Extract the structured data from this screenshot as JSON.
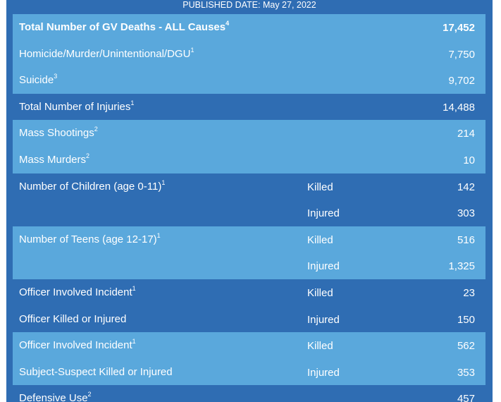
{
  "published_date": "PUBLISHED DATE: May 27, 2022",
  "rows": [
    {
      "label": "Total Number of GV Deaths - ALL Causes",
      "sup": "4",
      "kind": "",
      "value": "17,452",
      "bold": true,
      "shade": "light"
    },
    {
      "label": "Homicide/Murder/Unintentional/DGU",
      "sup": "1",
      "kind": "",
      "value": "7,750",
      "bold": false,
      "shade": "light"
    },
    {
      "label": "Suicide",
      "sup": "3",
      "kind": "",
      "value": "9,702",
      "bold": false,
      "shade": "light"
    },
    {
      "label": "Total Number of Injuries",
      "sup": "1",
      "kind": "",
      "value": "14,488",
      "bold": false,
      "shade": "dark"
    },
    {
      "label": "Mass Shootings",
      "sup": "2",
      "kind": "",
      "value": "214",
      "bold": false,
      "shade": "light"
    },
    {
      "label": "Mass Murders",
      "sup": "2",
      "kind": "",
      "value": "10",
      "bold": false,
      "shade": "light"
    },
    {
      "label": "Number of Children (age 0-11)",
      "sup": "1",
      "kind": "Killed",
      "value": "142",
      "bold": false,
      "shade": "dark"
    },
    {
      "label": "",
      "sup": "",
      "kind": "Injured",
      "value": "303",
      "bold": false,
      "shade": "dark"
    },
    {
      "label": "Number of Teens (age 12-17)",
      "sup": "1",
      "kind": "Killed",
      "value": "516",
      "bold": false,
      "shade": "light"
    },
    {
      "label": "",
      "sup": "",
      "kind": "Injured",
      "value": "1,325",
      "bold": false,
      "shade": "light"
    },
    {
      "label": "Officer Involved Incident",
      "sup": "1",
      "kind": "Killed",
      "value": "23",
      "bold": false,
      "shade": "dark"
    },
    {
      "label": "Officer Killed or Injured",
      "sup": "",
      "kind": "Injured",
      "value": "150",
      "bold": false,
      "shade": "dark"
    },
    {
      "label": "Officer Involved Incident",
      "sup": "1",
      "kind": "Killed",
      "value": "562",
      "bold": false,
      "shade": "light"
    },
    {
      "label": "Subject-Suspect Killed or Injured",
      "sup": "",
      "kind": "Injured",
      "value": "353",
      "bold": false,
      "shade": "light"
    },
    {
      "label": "Defensive Use",
      "sup": "2",
      "kind": "",
      "value": "457",
      "bold": false,
      "shade": "dark"
    }
  ]
}
